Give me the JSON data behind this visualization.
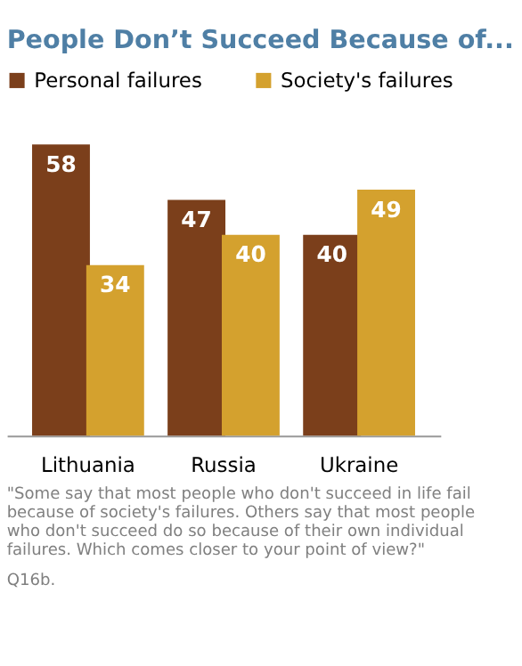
{
  "chart_data": {
    "type": "bar",
    "title": "People Don’t Succeed Because of...",
    "categories": [
      "Lithuania",
      "Russia",
      "Ukraine"
    ],
    "series": [
      {
        "name": "Personal failures",
        "color": "#7b3f1b",
        "values": [
          58,
          47,
          40
        ]
      },
      {
        "name": "Society's failures",
        "color": "#d4a12e",
        "values": [
          34,
          40,
          49
        ]
      }
    ],
    "data_labels": true,
    "legend": "top",
    "grid": false,
    "annotations": [
      "\"Some say that most people who don't succeed in life fail because of society's failures.  Others say that most people who don't succeed do so because of their own individual failures.  Which comes closer to your point of view?\"",
      "Q16b."
    ]
  }
}
